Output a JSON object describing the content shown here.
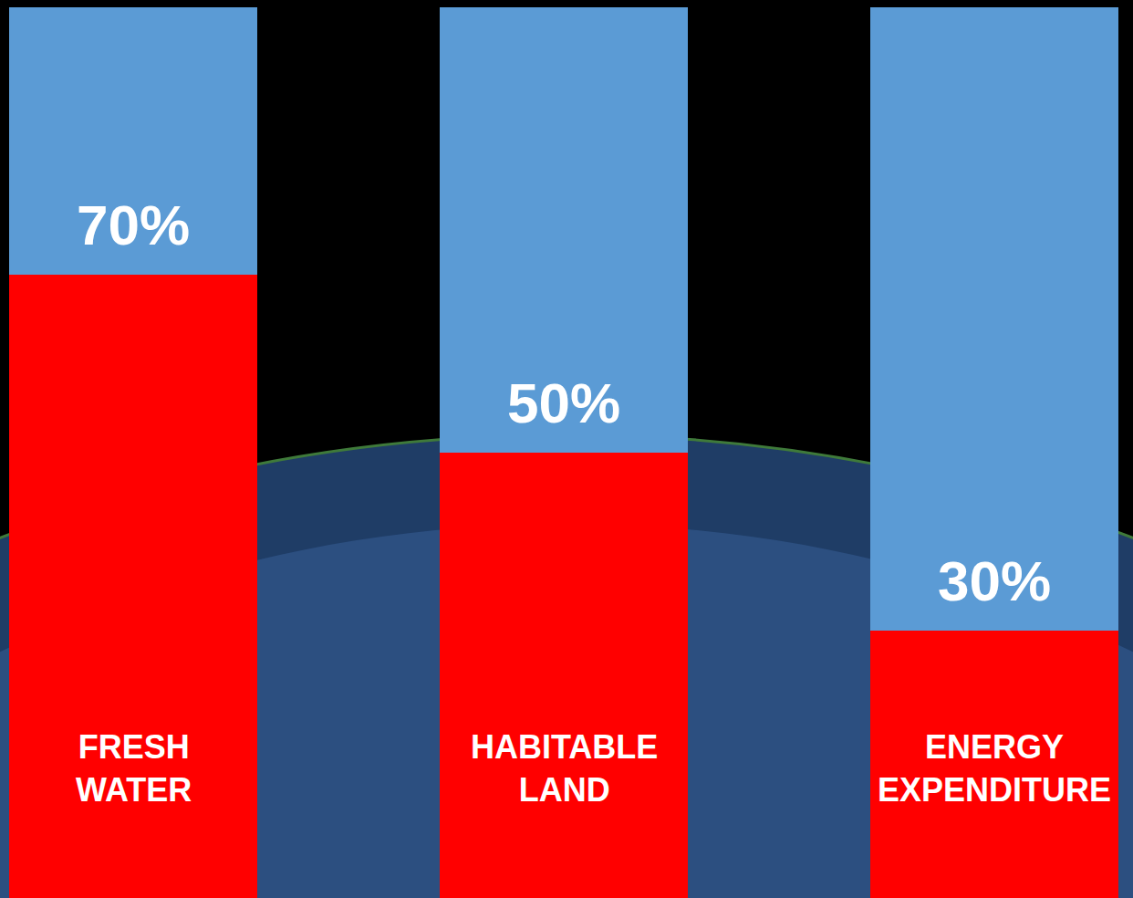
{
  "chart_data": {
    "type": "bar",
    "stacked": true,
    "categories": [
      "FRESH WATER",
      "HABITABLE LAND",
      "ENERGY EXPENDITURE"
    ],
    "series": [
      {
        "color": "#ff0000",
        "values": [
          70,
          50,
          30
        ],
        "value_labels": [
          "70%",
          "50%",
          "30%"
        ]
      },
      {
        "color": "#5b9bd5",
        "values": [
          30,
          50,
          70
        ]
      }
    ],
    "ylim": [
      0,
      100
    ],
    "grid": false,
    "data_labels": true,
    "tick_labels": false
  }
}
